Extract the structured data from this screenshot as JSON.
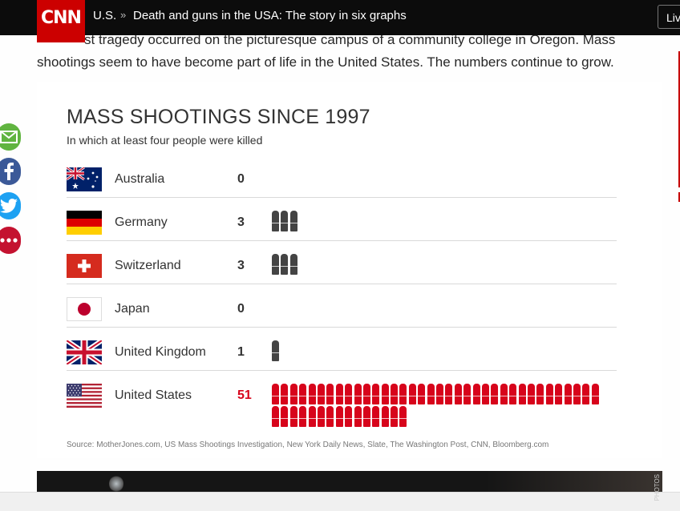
{
  "header": {
    "logo": "CNN",
    "section": "U.S.",
    "separator": "»",
    "title": "Death and guns in the USA: The story in six graphs",
    "live_label": "Live"
  },
  "article": {
    "intro_line1": "st tragedy occurred on the picturesque campus of a community college in Oregon. Mass",
    "intro_line2": "shootings seem to have become part of life in the United States. The numbers continue to grow."
  },
  "social": {
    "icons": [
      "email-icon",
      "facebook-icon",
      "twitter-icon",
      "more-icon"
    ],
    "colors": {
      "email": "#60b440",
      "facebook": "#3b5998",
      "twitter": "#1da1f2",
      "more": "#c41230"
    }
  },
  "infographic": {
    "title": "MASS SHOOTINGS SINCE 1997",
    "subtitle": "In which at least four people were killed",
    "source": "Source: MotherJones.com, US Mass Shootings Investigation, New York Daily News, Slate, The Washington Post, CNN, Bloomberg.com",
    "highlight_color": "#d7041b",
    "bullet_color": "#444444",
    "rows": [
      {
        "country": "Australia",
        "count": "0",
        "flag": "australia-flag"
      },
      {
        "country": "Germany",
        "count": "3",
        "flag": "germany-flag"
      },
      {
        "country": "Switzerland",
        "count": "3",
        "flag": "switzerland-flag"
      },
      {
        "country": "Japan",
        "count": "0",
        "flag": "japan-flag"
      },
      {
        "country": "United Kingdom",
        "count": "1",
        "flag": "uk-flag"
      },
      {
        "country": "United States",
        "count": "51",
        "flag": "us-flag"
      }
    ]
  },
  "chart_data": {
    "type": "table",
    "title": "MASS SHOOTINGS SINCE 1997",
    "subtitle": "In which at least four people were killed",
    "categories": [
      "Australia",
      "Germany",
      "Switzerland",
      "Japan",
      "United Kingdom",
      "United States"
    ],
    "values": [
      0,
      3,
      3,
      0,
      1,
      51
    ]
  },
  "photo": {
    "credit": "PHOTOS"
  }
}
